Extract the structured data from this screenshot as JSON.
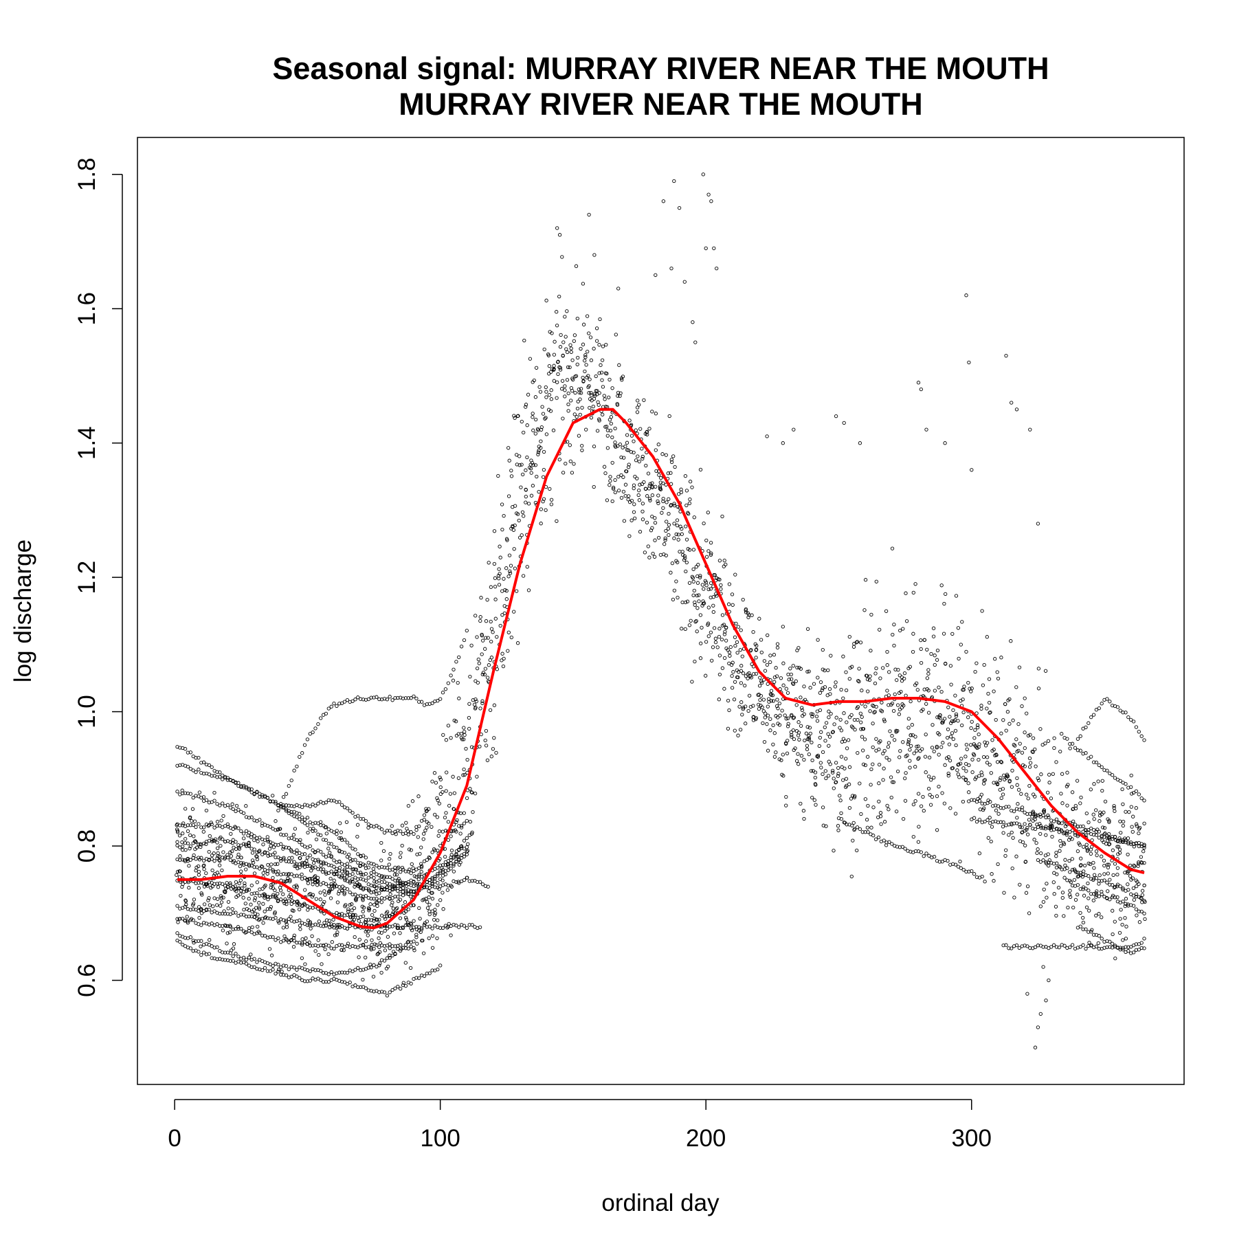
{
  "chart_data": {
    "type": "scatter",
    "title": "Seasonal signal: MURRAY RIVER NEAR THE MOUTH",
    "subtitle": "MURRAY RIVER NEAR THE MOUTH",
    "xlabel": "ordinal day",
    "ylabel": "log discharge",
    "xlim": [
      -14,
      380
    ],
    "ylim": [
      0.445,
      1.855
    ],
    "x_ticks": [
      0,
      100,
      200,
      300
    ],
    "y_ticks": [
      0.6,
      0.8,
      1.0,
      1.2,
      1.4,
      1.6,
      1.8
    ],
    "x_tick_labels": [
      "0",
      "100",
      "200",
      "300"
    ],
    "y_tick_labels": [
      "0.6",
      "0.8",
      "1.0",
      "1.2",
      "1.4",
      "1.6",
      "1.8"
    ],
    "grid": false,
    "legend": "none",
    "point_color": "#000000",
    "line_color": "#ff0000",
    "scatter_envelope": {
      "x": [
        1,
        20,
        40,
        60,
        75,
        90,
        100,
        110,
        120,
        130,
        140,
        150,
        160,
        170,
        180,
        190,
        200,
        210,
        220,
        230,
        240,
        250,
        260,
        270,
        280,
        290,
        300,
        310,
        320,
        330,
        340,
        350,
        365
      ],
      "center": [
        0.77,
        0.76,
        0.74,
        0.72,
        0.7,
        0.73,
        0.8,
        0.93,
        1.12,
        1.32,
        1.45,
        1.5,
        1.47,
        1.4,
        1.33,
        1.25,
        1.17,
        1.1,
        1.04,
        1.0,
        0.97,
        0.96,
        0.97,
        0.99,
        1.0,
        0.99,
        0.96,
        0.92,
        0.88,
        0.83,
        0.8,
        0.78,
        0.78
      ],
      "spread": [
        0.09,
        0.09,
        0.09,
        0.09,
        0.09,
        0.1,
        0.13,
        0.16,
        0.18,
        0.17,
        0.14,
        0.11,
        0.1,
        0.1,
        0.11,
        0.12,
        0.11,
        0.1,
        0.09,
        0.1,
        0.12,
        0.14,
        0.15,
        0.16,
        0.16,
        0.16,
        0.15,
        0.15,
        0.15,
        0.13,
        0.11,
        0.1,
        0.1
      ]
    },
    "outliers": [
      {
        "x": 144,
        "y": 1.72
      },
      {
        "x": 145,
        "y": 1.71
      },
      {
        "x": 156,
        "y": 1.74
      },
      {
        "x": 184,
        "y": 1.76
      },
      {
        "x": 188,
        "y": 1.79
      },
      {
        "x": 190,
        "y": 1.75
      },
      {
        "x": 199,
        "y": 1.8
      },
      {
        "x": 201,
        "y": 1.77
      },
      {
        "x": 202,
        "y": 1.76
      },
      {
        "x": 203,
        "y": 1.69
      },
      {
        "x": 200,
        "y": 1.69
      },
      {
        "x": 187,
        "y": 1.66
      },
      {
        "x": 204,
        "y": 1.66
      },
      {
        "x": 192,
        "y": 1.64
      },
      {
        "x": 181,
        "y": 1.65
      },
      {
        "x": 280,
        "y": 1.49
      },
      {
        "x": 281,
        "y": 1.48
      },
      {
        "x": 298,
        "y": 1.62
      },
      {
        "x": 299,
        "y": 1.52
      },
      {
        "x": 313,
        "y": 1.53
      },
      {
        "x": 315,
        "y": 1.46
      },
      {
        "x": 317,
        "y": 1.45
      },
      {
        "x": 322,
        "y": 1.42
      },
      {
        "x": 325,
        "y": 1.28
      },
      {
        "x": 233,
        "y": 1.42
      },
      {
        "x": 249,
        "y": 1.44
      },
      {
        "x": 252,
        "y": 1.43
      },
      {
        "x": 258,
        "y": 1.4
      },
      {
        "x": 229,
        "y": 1.4
      },
      {
        "x": 290,
        "y": 1.4
      },
      {
        "x": 283,
        "y": 1.42
      },
      {
        "x": 300,
        "y": 1.36
      },
      {
        "x": 325,
        "y": 0.53
      },
      {
        "x": 324,
        "y": 0.5
      },
      {
        "x": 326,
        "y": 0.55
      },
      {
        "x": 328,
        "y": 0.57
      },
      {
        "x": 321,
        "y": 0.58
      },
      {
        "x": 329,
        "y": 0.6
      },
      {
        "x": 327,
        "y": 0.62
      },
      {
        "x": 223,
        "y": 1.41
      },
      {
        "x": 196,
        "y": 1.55
      },
      {
        "x": 195,
        "y": 1.58
      },
      {
        "x": 167,
        "y": 1.63
      },
      {
        "x": 158,
        "y": 1.68
      }
    ],
    "track_series": [
      {
        "x": [
          1,
          20,
          40,
          60,
          75,
          90,
          100,
          110,
          118
        ],
        "y": [
          0.95,
          0.9,
          0.86,
          0.8,
          0.76,
          0.74,
          0.74,
          0.75,
          0.74
        ]
      },
      {
        "x": [
          1,
          20,
          40,
          60,
          75,
          90,
          100,
          110
        ],
        "y": [
          0.92,
          0.9,
          0.86,
          0.82,
          0.77,
          0.76,
          0.8,
          0.84
        ]
      },
      {
        "x": [
          1,
          20,
          40,
          60,
          75,
          90,
          100,
          112
        ],
        "y": [
          0.88,
          0.86,
          0.82,
          0.78,
          0.75,
          0.73,
          0.76,
          0.82
        ]
      },
      {
        "x": [
          1,
          20,
          40,
          60,
          75,
          90,
          100,
          110
        ],
        "y": [
          0.83,
          0.83,
          0.8,
          0.77,
          0.74,
          0.73,
          0.75,
          0.79
        ]
      },
      {
        "x": [
          1,
          20,
          40,
          60,
          75,
          90,
          100,
          110
        ],
        "y": [
          0.8,
          0.81,
          0.78,
          0.76,
          0.73,
          0.75,
          0.77,
          0.8
        ]
      },
      {
        "x": [
          1,
          20,
          40,
          60,
          75,
          90,
          100,
          110
        ],
        "y": [
          0.78,
          0.78,
          0.76,
          0.74,
          0.72,
          0.73,
          0.76,
          0.79
        ]
      },
      {
        "x": [
          1,
          20,
          40,
          60,
          75,
          90
        ],
        "y": [
          0.75,
          0.74,
          0.72,
          0.7,
          0.69,
          0.71
        ]
      },
      {
        "x": [
          1,
          20,
          40,
          60,
          80,
          100,
          115
        ],
        "y": [
          0.71,
          0.7,
          0.69,
          0.68,
          0.68,
          0.68,
          0.68
        ]
      },
      {
        "x": [
          1,
          20,
          40,
          60,
          75,
          90
        ],
        "y": [
          0.69,
          0.68,
          0.66,
          0.65,
          0.65,
          0.65
        ]
      },
      {
        "x": [
          1,
          20,
          40,
          60,
          75,
          90,
          100
        ],
        "y": [
          0.67,
          0.64,
          0.62,
          0.61,
          0.62,
          0.66,
          0.72
        ]
      },
      {
        "x": [
          1,
          10,
          20,
          30,
          40,
          50,
          60,
          70,
          80,
          90,
          100
        ],
        "y": [
          0.66,
          0.64,
          0.63,
          0.62,
          0.61,
          0.6,
          0.6,
          0.59,
          0.58,
          0.6,
          0.62
        ]
      },
      {
        "x": [
          38,
          45,
          50,
          55,
          60,
          70,
          80,
          90,
          95,
          100,
          105,
          110
        ],
        "y": [
          0.84,
          0.91,
          0.96,
          0.99,
          1.01,
          1.02,
          1.02,
          1.02,
          1.01,
          1.02,
          1.06,
          1.12
        ]
      },
      {
        "x": [
          40,
          50,
          60,
          70,
          80,
          90,
          95
        ],
        "y": [
          0.86,
          0.86,
          0.87,
          0.84,
          0.82,
          0.82,
          0.85
        ]
      },
      {
        "x": [
          300,
          320,
          340,
          355,
          365
        ],
        "y": [
          0.87,
          0.85,
          0.83,
          0.81,
          0.8
        ]
      },
      {
        "x": [
          300,
          320,
          340,
          355,
          365
        ],
        "y": [
          0.84,
          0.83,
          0.82,
          0.81,
          0.8
        ]
      },
      {
        "x": [
          312,
          330,
          345,
          360,
          365
        ],
        "y": [
          0.65,
          0.65,
          0.65,
          0.65,
          0.66
        ]
      },
      {
        "x": [
          340,
          350,
          360,
          365
        ],
        "y": [
          0.96,
          1.02,
          0.99,
          0.96
        ]
      },
      {
        "x": [
          335,
          345,
          355,
          365
        ],
        "y": [
          0.96,
          0.93,
          0.9,
          0.87
        ]
      },
      {
        "x": [
          335,
          345,
          355,
          365
        ],
        "y": [
          0.75,
          0.73,
          0.72,
          0.7
        ]
      },
      {
        "x": [
          340,
          350,
          360,
          365
        ],
        "y": [
          0.68,
          0.66,
          0.64,
          0.65
        ]
      },
      {
        "x": [
          325,
          340,
          355,
          365
        ],
        "y": [
          0.78,
          0.76,
          0.74,
          0.72
        ]
      },
      {
        "x": [
          250,
          265,
          280,
          295,
          305
        ],
        "y": [
          0.84,
          0.81,
          0.79,
          0.77,
          0.75
        ]
      }
    ],
    "smooth_series": {
      "x": [
        1,
        10,
        20,
        30,
        40,
        50,
        60,
        70,
        75,
        80,
        90,
        100,
        110,
        120,
        130,
        140,
        150,
        160,
        165,
        170,
        180,
        190,
        200,
        210,
        220,
        230,
        240,
        250,
        260,
        270,
        280,
        290,
        300,
        310,
        320,
        330,
        340,
        350,
        360,
        365
      ],
      "y": [
        0.75,
        0.75,
        0.755,
        0.755,
        0.745,
        0.72,
        0.695,
        0.68,
        0.678,
        0.685,
        0.72,
        0.79,
        0.89,
        1.06,
        1.22,
        1.35,
        1.43,
        1.45,
        1.45,
        1.43,
        1.38,
        1.31,
        1.22,
        1.13,
        1.06,
        1.02,
        1.01,
        1.015,
        1.015,
        1.02,
        1.02,
        1.015,
        1.0,
        0.96,
        0.91,
        0.86,
        0.82,
        0.79,
        0.765,
        0.76
      ]
    }
  }
}
